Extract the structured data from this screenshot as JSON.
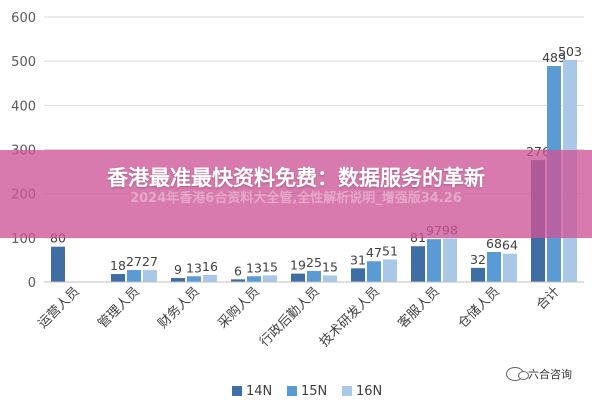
{
  "chart_data": {
    "type": "bar",
    "categories": [
      "运营人员",
      "管理人员",
      "财务人员",
      "采购人员",
      "行政后勤人员",
      "技术研发人员",
      "客服人员",
      "仓储人员",
      "合计"
    ],
    "series": [
      {
        "name": "14N",
        "color": "#3f6ea5",
        "values": [
          80,
          18,
          9,
          6,
          19,
          31,
          81,
          32,
          276
        ]
      },
      {
        "name": "15N",
        "color": "#5a9bd5",
        "values": [
          null,
          27,
          13,
          13,
          25,
          47,
          97,
          68,
          489
        ]
      },
      {
        "name": "16N",
        "color": "#a9c8e8",
        "values": [
          null,
          27,
          16,
          15,
          15,
          51,
          98,
          64,
          503
        ]
      }
    ],
    "yticks": [
      0,
      100,
      200,
      300,
      400,
      500,
      600
    ],
    "ylim": [
      0,
      600
    ],
    "grid": true,
    "legend_position": "bottom"
  },
  "banner": {
    "title": "香港最准最快资料免费：数据服务的革新",
    "subtitle": "2024年香港6合资料大全管,全性解析说明_增强版34.26"
  },
  "watermark": {
    "text": "六合咨询"
  }
}
